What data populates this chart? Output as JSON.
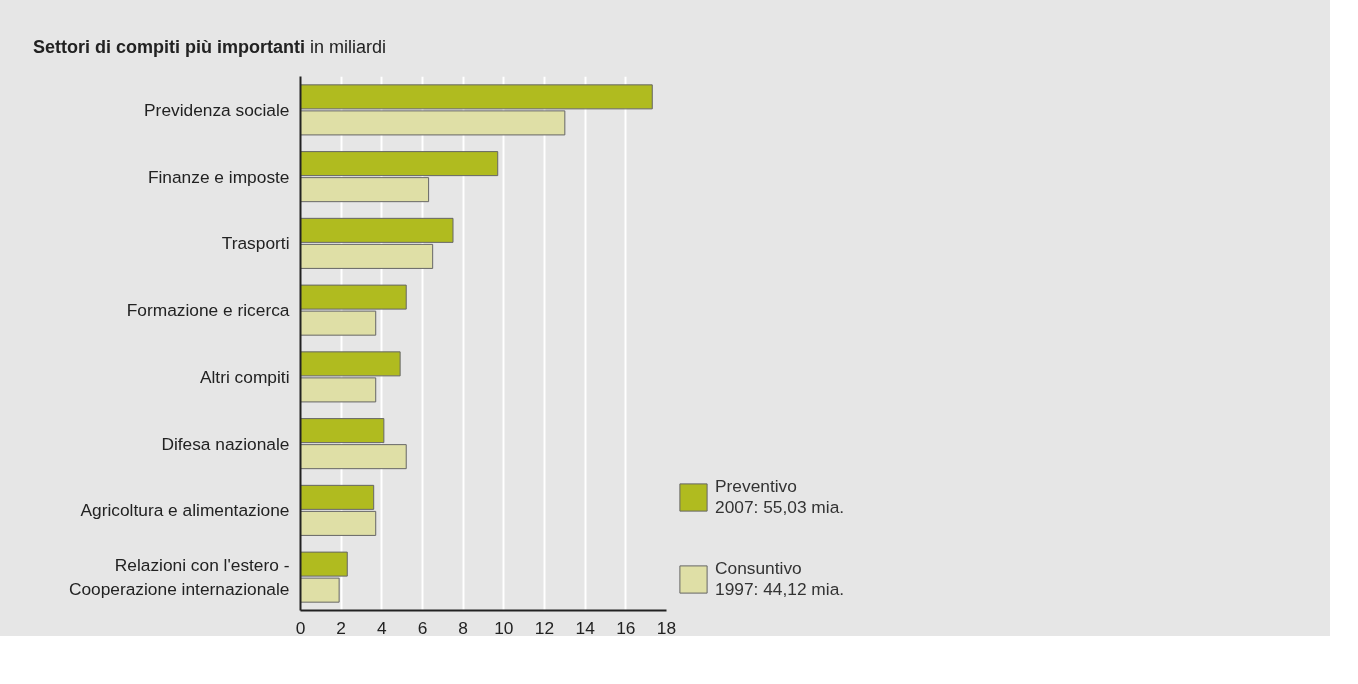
{
  "chart_data": {
    "type": "bar",
    "orientation": "horizontal",
    "title": "Settori di compiti più importanti",
    "subtitle": "in miliardi",
    "categories": [
      "Previdenza sociale",
      "Finanze e imposte",
      "Trasporti",
      "Formazione e ricerca",
      "Altri compiti",
      "Difesa nazionale",
      "Agricoltura e alimentazione",
      "Relazioni con l'estero -\nCooperazione internazionale"
    ],
    "series": [
      {
        "name": "Preventivo\n2007: 55,03 mia.",
        "color": "#b0bb1f",
        "values": [
          17.3,
          9.7,
          7.5,
          5.2,
          4.9,
          4.1,
          3.6,
          2.3
        ]
      },
      {
        "name": "Consuntivo\n1997: 44,12 mia.",
        "color": "#dfdfa6",
        "values": [
          13.0,
          6.3,
          6.5,
          3.7,
          3.7,
          5.2,
          3.7,
          1.9
        ]
      }
    ],
    "xlim": [
      0,
      18
    ],
    "xticks": [
      0,
      2,
      4,
      6,
      8,
      10,
      12,
      14,
      16,
      18
    ],
    "grid": "x",
    "legend": "bottom right"
  }
}
